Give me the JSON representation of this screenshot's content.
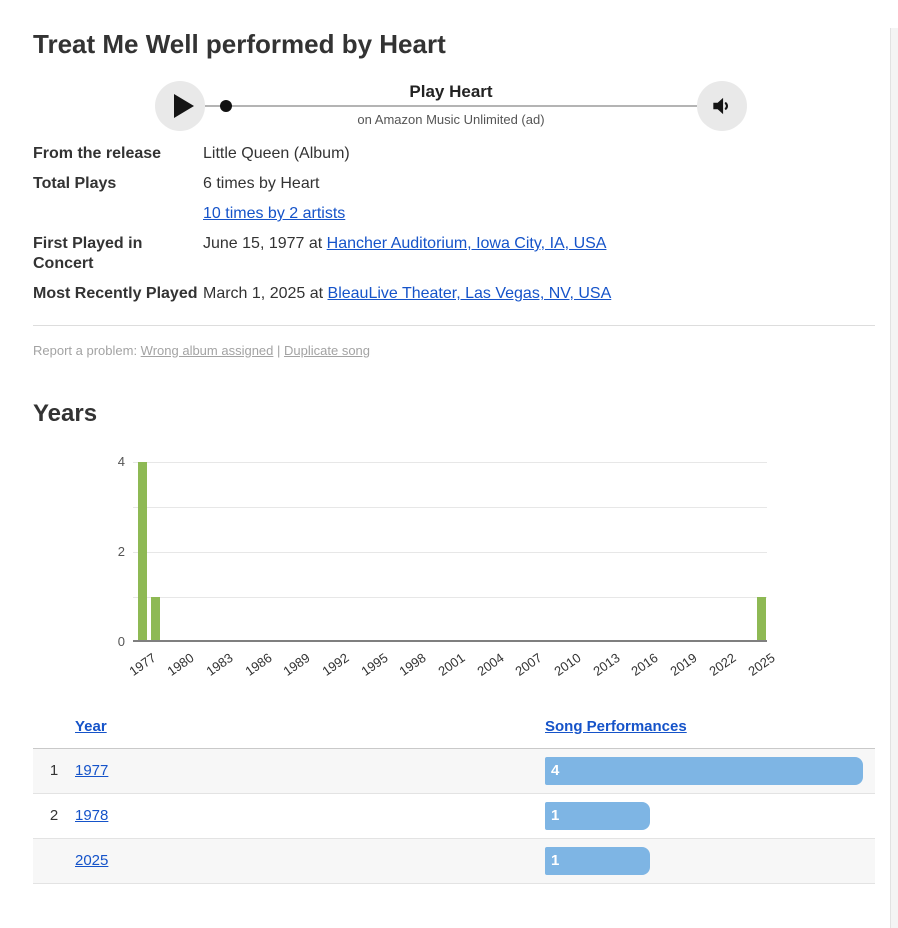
{
  "title": "Treat Me Well performed by Heart",
  "player": {
    "play_label": "Play Heart",
    "sublabel": "on Amazon Music Unlimited (ad)"
  },
  "details": {
    "release": {
      "label": "From the release",
      "value": "Little Queen (Album)"
    },
    "total": {
      "label": "Total Plays",
      "value": "6 times by Heart",
      "link": "10 times by 2 artists"
    },
    "first": {
      "label": "First Played in Concert",
      "date_text": "June 15, 1977 at ",
      "venue_link": "Hancher Auditorium, Iowa City, IA, USA"
    },
    "recent": {
      "label": "Most Recently Played",
      "date_text": "March 1, 2025 at ",
      "venue_link": "BleauLive Theater, Las Vegas, NV, USA"
    }
  },
  "report": {
    "prefix": "Report a problem: ",
    "wrong_album_link": "Wrong album assigned",
    "separator": " | ",
    "duplicate_link": "Duplicate song"
  },
  "years": {
    "heading": "Years"
  },
  "chart_data": {
    "type": "bar",
    "title": "Years",
    "x": [
      1977,
      1978,
      2025
    ],
    "values": [
      4,
      1,
      1
    ],
    "series_name": "Song Performances",
    "x_tick_labels": [
      "1977",
      "1980",
      "1983",
      "1986",
      "1989",
      "1992",
      "1995",
      "1998",
      "2001",
      "2004",
      "2007",
      "2010",
      "2013",
      "2016",
      "2019",
      "2022",
      "2025"
    ],
    "y_ticks": [
      0,
      2,
      4
    ],
    "y_gridlines": [
      0,
      1,
      2,
      3,
      4
    ],
    "xlim": [
      1977,
      2025
    ],
    "ylim": [
      0,
      4
    ],
    "grid": true,
    "legend": false,
    "bar_color": "#8eb954"
  },
  "table": {
    "headers": [
      {
        "label": "Year"
      },
      {
        "label": "Song Performances"
      }
    ],
    "rows": [
      {
        "rank": "1",
        "year": "1977",
        "performances": 4
      },
      {
        "rank": "2",
        "year": "1978",
        "performances": 1
      },
      {
        "rank": "",
        "year": "2025",
        "performances": 1
      }
    ],
    "bar_color": "#7eb5e4"
  },
  "colors": {
    "link_blue": "#1553c9",
    "chart_green": "#8eb954",
    "table_bar_blue": "#7eb5e4"
  }
}
